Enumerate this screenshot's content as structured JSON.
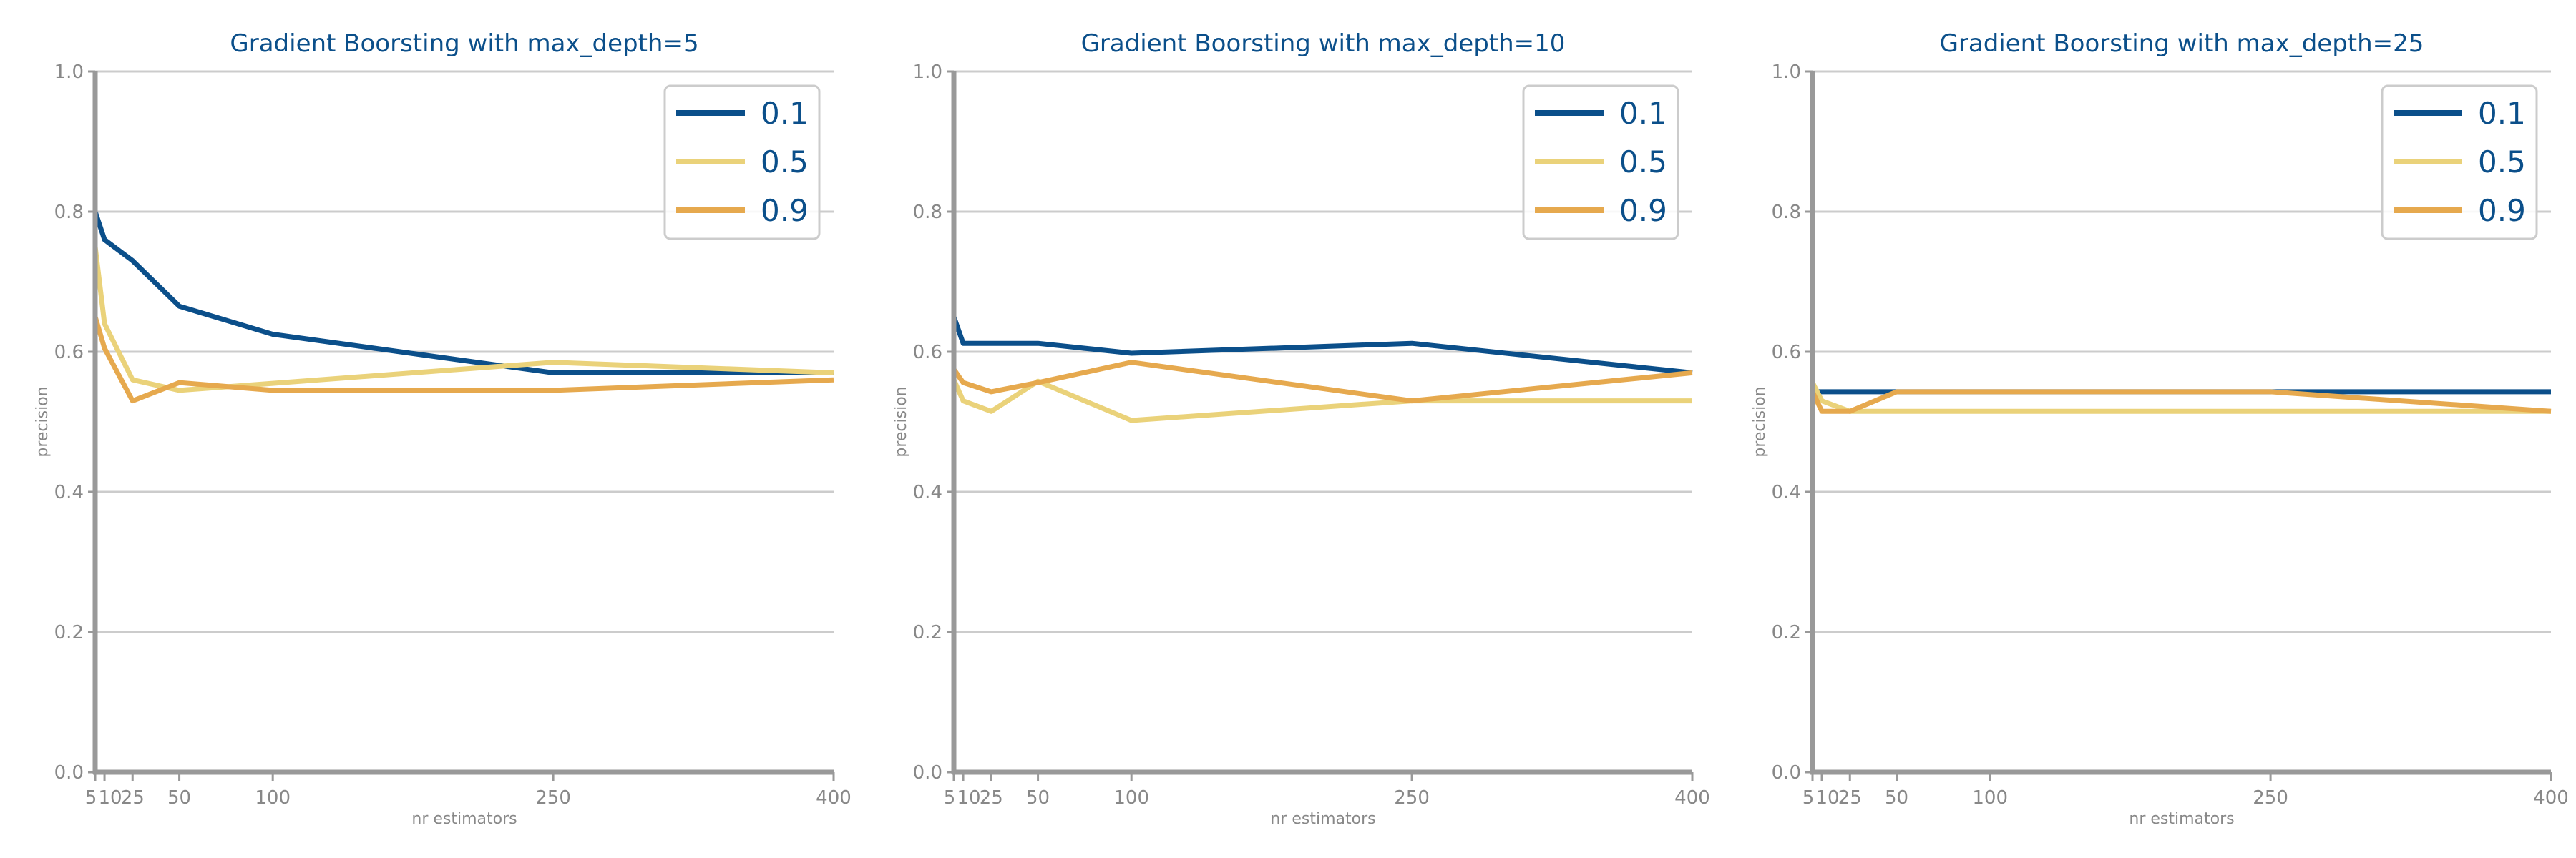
{
  "colors": {
    "0.1": "#0b4f8a",
    "0.5": "#ead27a",
    "0.9": "#e6a94e",
    "grid": "#cccccc",
    "axis": "#999999",
    "title": "#0b4f8a"
  },
  "chart_data": [
    {
      "type": "line",
      "title": "Gradient Boorsting with max_depth=5",
      "xlabel": "nr estimators",
      "ylabel": "precision",
      "x": [
        5,
        10,
        25,
        50,
        100,
        250,
        400
      ],
      "xticks": [
        "5",
        "10",
        "25",
        "50",
        "100",
        "250",
        "400"
      ],
      "xlim": [
        5,
        400
      ],
      "ylim": [
        0.0,
        1.0
      ],
      "yticks": [
        "0.0",
        "0.2",
        "0.4",
        "0.6",
        "0.8",
        "1.0"
      ],
      "grid": true,
      "legend_position": "top-right",
      "series": [
        {
          "name": "0.1",
          "values": [
            0.8,
            0.76,
            0.73,
            0.665,
            0.625,
            0.57,
            0.57
          ]
        },
        {
          "name": "0.5",
          "values": [
            0.75,
            0.64,
            0.56,
            0.545,
            0.555,
            0.585,
            0.57
          ]
        },
        {
          "name": "0.9",
          "values": [
            0.65,
            0.605,
            0.53,
            0.556,
            0.545,
            0.545,
            0.56
          ]
        }
      ]
    },
    {
      "type": "line",
      "title": "Gradient Boorsting with max_depth=10",
      "xlabel": "nr estimators",
      "ylabel": "precision",
      "x": [
        5,
        10,
        25,
        50,
        100,
        250,
        400
      ],
      "xticks": [
        "5",
        "10",
        "25",
        "50",
        "100",
        "250",
        "400"
      ],
      "xlim": [
        5,
        400
      ],
      "ylim": [
        0.0,
        1.0
      ],
      "yticks": [
        "0.0",
        "0.2",
        "0.4",
        "0.6",
        "0.8",
        "1.0"
      ],
      "grid": true,
      "legend_position": "top-right",
      "series": [
        {
          "name": "0.1",
          "values": [
            0.65,
            0.612,
            0.612,
            0.612,
            0.598,
            0.612,
            0.57
          ]
        },
        {
          "name": "0.5",
          "values": [
            0.56,
            0.53,
            0.515,
            0.558,
            0.502,
            0.53,
            0.53
          ]
        },
        {
          "name": "0.9",
          "values": [
            0.575,
            0.556,
            0.543,
            0.556,
            0.585,
            0.53,
            0.57
          ]
        }
      ]
    },
    {
      "type": "line",
      "title": "Gradient Boorsting with max_depth=25",
      "xlabel": "nr estimators",
      "ylabel": "precision",
      "x": [
        5,
        10,
        25,
        50,
        100,
        250,
        400
      ],
      "xticks": [
        "5",
        "10",
        "25",
        "50",
        "100",
        "250",
        "400"
      ],
      "xlim": [
        5,
        400
      ],
      "ylim": [
        0.0,
        1.0
      ],
      "yticks": [
        "0.0",
        "0.2",
        "0.4",
        "0.6",
        "0.8",
        "1.0"
      ],
      "grid": true,
      "legend_position": "top-right",
      "series": [
        {
          "name": "0.1",
          "values": [
            0.543,
            0.543,
            0.543,
            0.543,
            0.543,
            0.543,
            0.543
          ]
        },
        {
          "name": "0.5",
          "values": [
            0.556,
            0.53,
            0.515,
            0.515,
            0.515,
            0.515,
            0.515
          ]
        },
        {
          "name": "0.9",
          "values": [
            0.543,
            0.515,
            0.515,
            0.543,
            0.543,
            0.543,
            0.515
          ]
        }
      ]
    }
  ]
}
